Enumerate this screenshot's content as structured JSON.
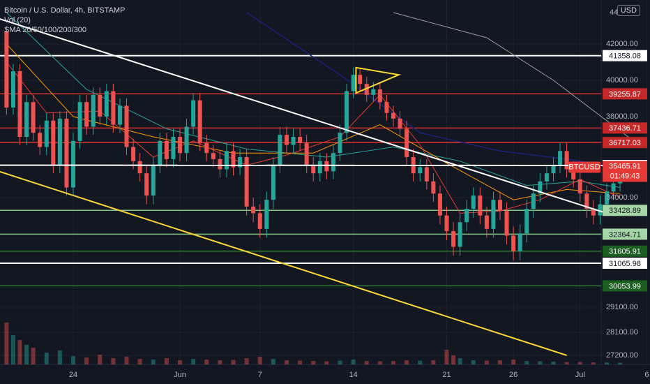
{
  "header": {
    "symbol_line": "Bitcoin / U.S. Dollar, 4h, BITSTAMP",
    "vol_line": "Vol (20)",
    "sma_line": "SMA 20/50/100/200/300",
    "currency_button": "USD"
  },
  "colors": {
    "background": "#131722",
    "grid": "#1e222d",
    "axis_text": "#b2b5be",
    "up_candle": "#26a69a",
    "down_candle": "#ef5350",
    "white_line": "#ffffff",
    "red_level": "#d32f2f",
    "green_level": "#81c784",
    "dark_green_level": "#2e7d32",
    "yellow_trend": "#fdd835",
    "sma20": "#e53935",
    "sma50": "#ff9800",
    "sma100": "#26a69a",
    "sma200": "#1a237e",
    "sma300": "#9e9e9e"
  },
  "chart_data": {
    "type": "candlestick",
    "title": "Bitcoin / U.S. Dollar, 4h, BITSTAMP",
    "y_ticks": [
      {
        "value": 42000,
        "label": "42000.00"
      },
      {
        "value": 40000,
        "label": "40000.00"
      },
      {
        "value": 38000,
        "label": "38000.00"
      },
      {
        "value": 34000,
        "label": "34000.00"
      },
      {
        "value": 29100,
        "label": "29100.00"
      },
      {
        "value": 28100,
        "label": "28100.00"
      },
      {
        "value": 27200,
        "label": "27200.00"
      }
    ],
    "y_top_partial_label": "44",
    "x_ticks": [
      {
        "day": 24,
        "label": "24"
      },
      {
        "day": 32,
        "label": "Jun"
      },
      {
        "day": 38,
        "label": "7"
      },
      {
        "day": 45,
        "label": "14"
      },
      {
        "day": 52,
        "label": "21"
      },
      {
        "day": 57,
        "label": "26"
      },
      {
        "day": 62,
        "label": "Jul"
      },
      {
        "day": 67,
        "label": "6"
      }
    ],
    "levels": [
      {
        "value": 41358.08,
        "label": "41358.08",
        "style": "white"
      },
      {
        "value": 39255.87,
        "label": "39255.87",
        "style": "red"
      },
      {
        "value": 37436.71,
        "label": "37436.71",
        "style": "red"
      },
      {
        "value": 36717.03,
        "label": "36717.03",
        "style": "red"
      },
      {
        "value": 35586.11,
        "label": "35586.11",
        "style": "plain"
      },
      {
        "value": 33428.89,
        "label": "33428.89",
        "style": "green"
      },
      {
        "value": 32364.71,
        "label": "32364.71",
        "style": "green"
      },
      {
        "value": 31605.91,
        "label": "31605.91",
        "style": "darkgreen"
      },
      {
        "value": 31065.98,
        "label": "31065.98",
        "style": "white"
      },
      {
        "value": 30053.99,
        "label": "30053.99",
        "style": "darkgreen"
      }
    ],
    "current_price": {
      "symbol": "BTCUSD",
      "price": "35465.91",
      "countdown": "01:49:43",
      "value": 35465.91
    },
    "candles": [
      {
        "day": 19,
        "o": 43000,
        "c": 38500
      },
      {
        "day": 19.5,
        "o": 38500,
        "c": 40500
      },
      {
        "day": 20,
        "o": 40500,
        "c": 37000
      },
      {
        "day": 20.5,
        "o": 37000,
        "c": 38800
      },
      {
        "day": 21,
        "o": 38800,
        "c": 37200
      },
      {
        "day": 21.5,
        "o": 37200,
        "c": 36500
      },
      {
        "day": 22,
        "o": 36500,
        "c": 37800
      },
      {
        "day": 22.5,
        "o": 37800,
        "c": 35600
      },
      {
        "day": 23,
        "o": 35600,
        "c": 37900
      },
      {
        "day": 23.5,
        "o": 37900,
        "c": 34500
      },
      {
        "day": 24,
        "o": 34500,
        "c": 36800
      },
      {
        "day": 24.5,
        "o": 36800,
        "c": 38800
      },
      {
        "day": 25,
        "o": 38800,
        "c": 37500
      },
      {
        "day": 25.5,
        "o": 37500,
        "c": 39200
      },
      {
        "day": 26,
        "o": 39200,
        "c": 38000
      },
      {
        "day": 26.5,
        "o": 38000,
        "c": 39400
      },
      {
        "day": 27,
        "o": 39400,
        "c": 37600
      },
      {
        "day": 27.5,
        "o": 37600,
        "c": 38600
      },
      {
        "day": 28,
        "o": 38600,
        "c": 36500
      },
      {
        "day": 28.5,
        "o": 36500,
        "c": 35800
      },
      {
        "day": 29,
        "o": 35800,
        "c": 35200
      },
      {
        "day": 29.5,
        "o": 35200,
        "c": 34100
      },
      {
        "day": 30,
        "o": 34100,
        "c": 35600
      },
      {
        "day": 30.5,
        "o": 35600,
        "c": 36800
      },
      {
        "day": 31,
        "o": 36800,
        "c": 35900
      },
      {
        "day": 31.5,
        "o": 35900,
        "c": 37000
      },
      {
        "day": 32,
        "o": 37000,
        "c": 36200
      },
      {
        "day": 32.5,
        "o": 36200,
        "c": 37500
      },
      {
        "day": 33,
        "o": 37500,
        "c": 38900
      },
      {
        "day": 33.5,
        "o": 38900,
        "c": 36700
      },
      {
        "day": 34,
        "o": 36700,
        "c": 36200
      },
      {
        "day": 34.5,
        "o": 36200,
        "c": 35900
      },
      {
        "day": 35,
        "o": 35900,
        "c": 35400
      },
      {
        "day": 35.5,
        "o": 35400,
        "c": 36300
      },
      {
        "day": 36,
        "o": 36300,
        "c": 35500
      },
      {
        "day": 36.5,
        "o": 35500,
        "c": 36000
      },
      {
        "day": 37,
        "o": 36000,
        "c": 33600
      },
      {
        "day": 37.5,
        "o": 33600,
        "c": 33300
      },
      {
        "day": 38,
        "o": 33300,
        "c": 32600
      },
      {
        "day": 38.5,
        "o": 32600,
        "c": 33900
      },
      {
        "day": 39,
        "o": 33900,
        "c": 35600
      },
      {
        "day": 39.5,
        "o": 35600,
        "c": 37100
      },
      {
        "day": 40,
        "o": 37100,
        "c": 36600
      },
      {
        "day": 40.5,
        "o": 36600,
        "c": 37000
      },
      {
        "day": 41,
        "o": 37000,
        "c": 36700
      },
      {
        "day": 41.5,
        "o": 36700,
        "c": 35600
      },
      {
        "day": 42,
        "o": 35600,
        "c": 35200
      },
      {
        "day": 42.5,
        "o": 35200,
        "c": 35800
      },
      {
        "day": 43,
        "o": 35800,
        "c": 35300
      },
      {
        "day": 43.5,
        "o": 35300,
        "c": 36200
      },
      {
        "day": 44,
        "o": 36200,
        "c": 37200
      },
      {
        "day": 44.5,
        "o": 37200,
        "c": 39400
      },
      {
        "day": 45,
        "o": 39400,
        "c": 40300
      },
      {
        "day": 45.5,
        "o": 40300,
        "c": 39800
      },
      {
        "day": 46,
        "o": 39800,
        "c": 39200
      },
      {
        "day": 46.5,
        "o": 39200,
        "c": 39500
      },
      {
        "day": 47,
        "o": 39500,
        "c": 38800
      },
      {
        "day": 47.5,
        "o": 38800,
        "c": 38200
      },
      {
        "day": 48,
        "o": 38200,
        "c": 37900
      },
      {
        "day": 48.5,
        "o": 37900,
        "c": 37400
      },
      {
        "day": 49,
        "o": 37400,
        "c": 36000
      },
      {
        "day": 49.5,
        "o": 36000,
        "c": 35200
      },
      {
        "day": 50,
        "o": 35200,
        "c": 35500
      },
      {
        "day": 50.5,
        "o": 35500,
        "c": 34800
      },
      {
        "day": 51,
        "o": 34800,
        "c": 34200
      },
      {
        "day": 51.5,
        "o": 34200,
        "c": 33200
      },
      {
        "day": 52,
        "o": 33200,
        "c": 32500
      },
      {
        "day": 52.5,
        "o": 32500,
        "c": 31800
      },
      {
        "day": 53,
        "o": 31800,
        "c": 32900
      },
      {
        "day": 53.5,
        "o": 32900,
        "c": 33500
      },
      {
        "day": 54,
        "o": 33500,
        "c": 34100
      },
      {
        "day": 54.5,
        "o": 34100,
        "c": 33200
      },
      {
        "day": 55,
        "o": 33200,
        "c": 32600
      },
      {
        "day": 55.5,
        "o": 32600,
        "c": 33900
      },
      {
        "day": 56,
        "o": 33900,
        "c": 33400
      },
      {
        "day": 56.5,
        "o": 33400,
        "c": 32300
      },
      {
        "day": 57,
        "o": 32300,
        "c": 31600
      },
      {
        "day": 57.5,
        "o": 31600,
        "c": 32400
      },
      {
        "day": 58,
        "o": 32400,
        "c": 33500
      },
      {
        "day": 58.5,
        "o": 33500,
        "c": 34200
      },
      {
        "day": 59,
        "o": 34200,
        "c": 34800
      },
      {
        "day": 59.5,
        "o": 34800,
        "c": 35200
      },
      {
        "day": 60,
        "o": 35200,
        "c": 35600
      },
      {
        "day": 60.5,
        "o": 35600,
        "c": 36300
      },
      {
        "day": 61,
        "o": 36300,
        "c": 35400
      },
      {
        "day": 61.5,
        "o": 35400,
        "c": 34900
      },
      {
        "day": 62,
        "o": 34900,
        "c": 34200
      },
      {
        "day": 62.5,
        "o": 34200,
        "c": 33500
      },
      {
        "day": 63,
        "o": 33500,
        "c": 33200
      },
      {
        "day": 63.5,
        "o": 33200,
        "c": 33700
      },
      {
        "day": 64,
        "o": 33700,
        "c": 34300
      },
      {
        "day": 64.5,
        "o": 34300,
        "c": 34700
      },
      {
        "day": 65,
        "o": 34700,
        "c": 35466
      }
    ],
    "sma20": [
      {
        "day": 19,
        "v": 41000
      },
      {
        "day": 22,
        "v": 38200
      },
      {
        "day": 26,
        "v": 38300
      },
      {
        "day": 30,
        "v": 36000
      },
      {
        "day": 33,
        "v": 36800
      },
      {
        "day": 37,
        "v": 35600
      },
      {
        "day": 40,
        "v": 36100
      },
      {
        "day": 44,
        "v": 37000
      },
      {
        "day": 47,
        "v": 39200
      },
      {
        "day": 50,
        "v": 36600
      },
      {
        "day": 53,
        "v": 33300
      },
      {
        "day": 56,
        "v": 33400
      },
      {
        "day": 59,
        "v": 33900
      },
      {
        "day": 62,
        "v": 34900
      },
      {
        "day": 65,
        "v": 34000
      }
    ],
    "sma50": [
      {
        "day": 19,
        "v": 42000
      },
      {
        "day": 24,
        "v": 38000
      },
      {
        "day": 30,
        "v": 37000
      },
      {
        "day": 36,
        "v": 36200
      },
      {
        "day": 42,
        "v": 36200
      },
      {
        "day": 47,
        "v": 37600
      },
      {
        "day": 52,
        "v": 35700
      },
      {
        "day": 57,
        "v": 33900
      },
      {
        "day": 61,
        "v": 34400
      },
      {
        "day": 65,
        "v": 34200
      }
    ],
    "sma100": [
      {
        "day": 19,
        "v": 44500
      },
      {
        "day": 25,
        "v": 39500
      },
      {
        "day": 31,
        "v": 37400
      },
      {
        "day": 37,
        "v": 36400
      },
      {
        "day": 43,
        "v": 36000
      },
      {
        "day": 48,
        "v": 36500
      },
      {
        "day": 53,
        "v": 35800
      },
      {
        "day": 58,
        "v": 34600
      },
      {
        "day": 62,
        "v": 34800
      },
      {
        "day": 65,
        "v": 34500
      }
    ],
    "sma200": [
      {
        "day": 37,
        "v": 44500
      },
      {
        "day": 44,
        "v": 40300
      },
      {
        "day": 50,
        "v": 37200
      },
      {
        "day": 56,
        "v": 36300
      },
      {
        "day": 61,
        "v": 35900
      },
      {
        "day": 65,
        "v": 35500
      }
    ],
    "sma300": [
      {
        "day": 48,
        "v": 44500
      },
      {
        "day": 55,
        "v": 42500
      },
      {
        "day": 60,
        "v": 40000
      },
      {
        "day": 66,
        "v": 36800
      }
    ],
    "volume": [
      {
        "day": 19,
        "v": 600
      },
      {
        "day": 19.5,
        "v": 420
      },
      {
        "day": 20,
        "v": 350
      },
      {
        "day": 20.5,
        "v": 280
      },
      {
        "day": 21,
        "v": 240
      },
      {
        "day": 22,
        "v": 170
      },
      {
        "day": 23,
        "v": 200
      },
      {
        "day": 24,
        "v": 120
      },
      {
        "day": 25,
        "v": 100
      },
      {
        "day": 26,
        "v": 140
      },
      {
        "day": 27,
        "v": 90
      },
      {
        "day": 28,
        "v": 110
      },
      {
        "day": 29,
        "v": 80
      },
      {
        "day": 30,
        "v": 70
      },
      {
        "day": 31,
        "v": 90
      },
      {
        "day": 32,
        "v": 60
      },
      {
        "day": 33,
        "v": 80
      },
      {
        "day": 34,
        "v": 70
      },
      {
        "day": 35,
        "v": 60
      },
      {
        "day": 36,
        "v": 65
      },
      {
        "day": 37,
        "v": 90
      },
      {
        "day": 38,
        "v": 110
      },
      {
        "day": 39,
        "v": 80
      },
      {
        "day": 40,
        "v": 60
      },
      {
        "day": 41,
        "v": 55
      },
      {
        "day": 42,
        "v": 50
      },
      {
        "day": 43,
        "v": 45
      },
      {
        "day": 44,
        "v": 55
      },
      {
        "day": 45,
        "v": 70
      },
      {
        "day": 46,
        "v": 50
      },
      {
        "day": 47,
        "v": 45
      },
      {
        "day": 48,
        "v": 50
      },
      {
        "day": 49,
        "v": 60
      },
      {
        "day": 50,
        "v": 55
      },
      {
        "day": 51,
        "v": 60
      },
      {
        "day": 52,
        "v": 210
      },
      {
        "day": 52.5,
        "v": 130
      },
      {
        "day": 53,
        "v": 90
      },
      {
        "day": 54,
        "v": 60
      },
      {
        "day": 55,
        "v": 55
      },
      {
        "day": 56,
        "v": 60
      },
      {
        "day": 57,
        "v": 70
      },
      {
        "day": 58,
        "v": 50
      },
      {
        "day": 59,
        "v": 45
      },
      {
        "day": 60,
        "v": 40
      },
      {
        "day": 61,
        "v": 35
      },
      {
        "day": 62,
        "v": 35
      },
      {
        "day": 63,
        "v": 30
      },
      {
        "day": 64,
        "v": 28
      },
      {
        "day": 65,
        "v": 25
      }
    ],
    "trendlines": [
      {
        "color": "white",
        "from": {
          "day": 17,
          "v": 44500
        },
        "to": {
          "day": 64,
          "v": 33300
        }
      },
      {
        "color": "white",
        "from": {
          "day": 17,
          "v": 35600
        },
        "to": {
          "day": 65,
          "v": 35586.11
        }
      },
      {
        "color": "yellow",
        "from": {
          "day": 17,
          "v": 35600
        },
        "to": {
          "day": 61,
          "v": 27200
        }
      }
    ],
    "triangle": [
      {
        "day": 45.2,
        "v": 40700
      },
      {
        "day": 48.4,
        "v": 40300
      },
      {
        "day": 45.2,
        "v": 39300
      }
    ]
  }
}
